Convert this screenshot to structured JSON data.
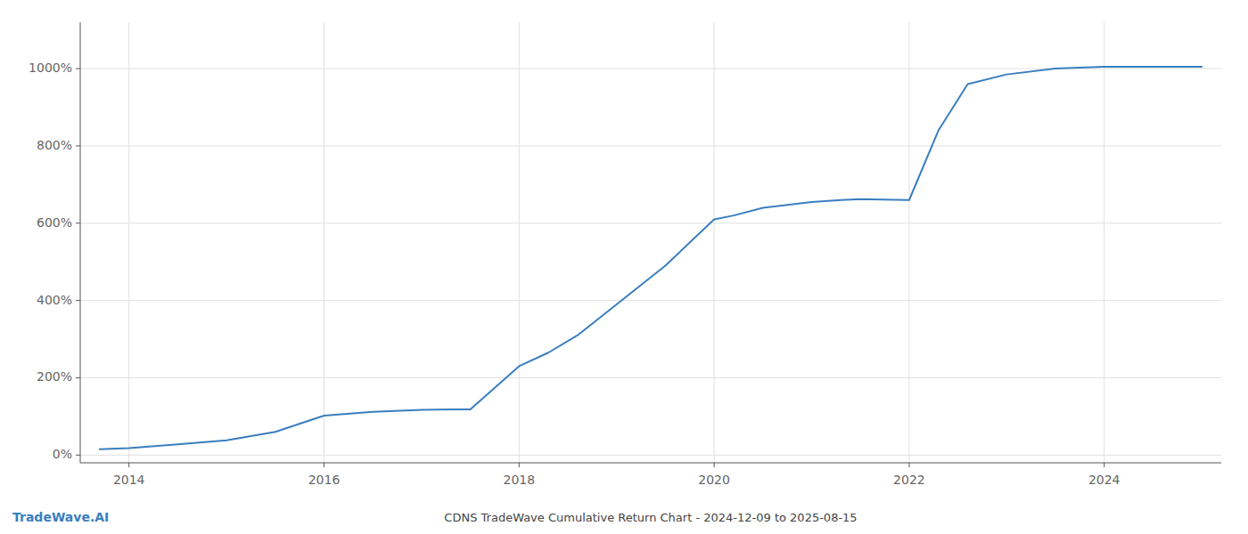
{
  "chart_data": {
    "type": "line",
    "title": "CDNS TradeWave Cumulative Return Chart - 2024-12-09 to 2025-08-15",
    "annotations": [
      "TradeWave.AI"
    ],
    "x": [
      2013.7,
      2014.0,
      2014.5,
      2015.0,
      2015.5,
      2016.0,
      2016.5,
      2017.0,
      2017.3,
      2017.5,
      2018.0,
      2018.3,
      2018.6,
      2019.0,
      2019.5,
      2020.0,
      2020.2,
      2020.5,
      2021.0,
      2021.3,
      2021.5,
      2022.0,
      2022.3,
      2022.6,
      2023.0,
      2023.5,
      2024.0,
      2024.5,
      2025.0
    ],
    "values": [
      15,
      18,
      28,
      38,
      60,
      102,
      112,
      117,
      118,
      118,
      230,
      265,
      310,
      390,
      490,
      610,
      620,
      640,
      655,
      660,
      662,
      660,
      840,
      960,
      985,
      1000,
      1005,
      1005,
      1005
    ],
    "color": "#3a7ebf",
    "xlim": [
      2013.5,
      2025.2
    ],
    "ylim": [
      -20,
      1120
    ],
    "xticks": [
      2014,
      2016,
      2018,
      2020,
      2022,
      2024
    ],
    "yticks": [
      {
        "value": 0,
        "label": "0%"
      },
      {
        "value": 200,
        "label": "200%"
      },
      {
        "value": 400,
        "label": "400%"
      },
      {
        "value": 600,
        "label": "600%"
      },
      {
        "value": 800,
        "label": "800%"
      },
      {
        "value": 1000,
        "label": "1000%"
      }
    ],
    "grid": true
  }
}
